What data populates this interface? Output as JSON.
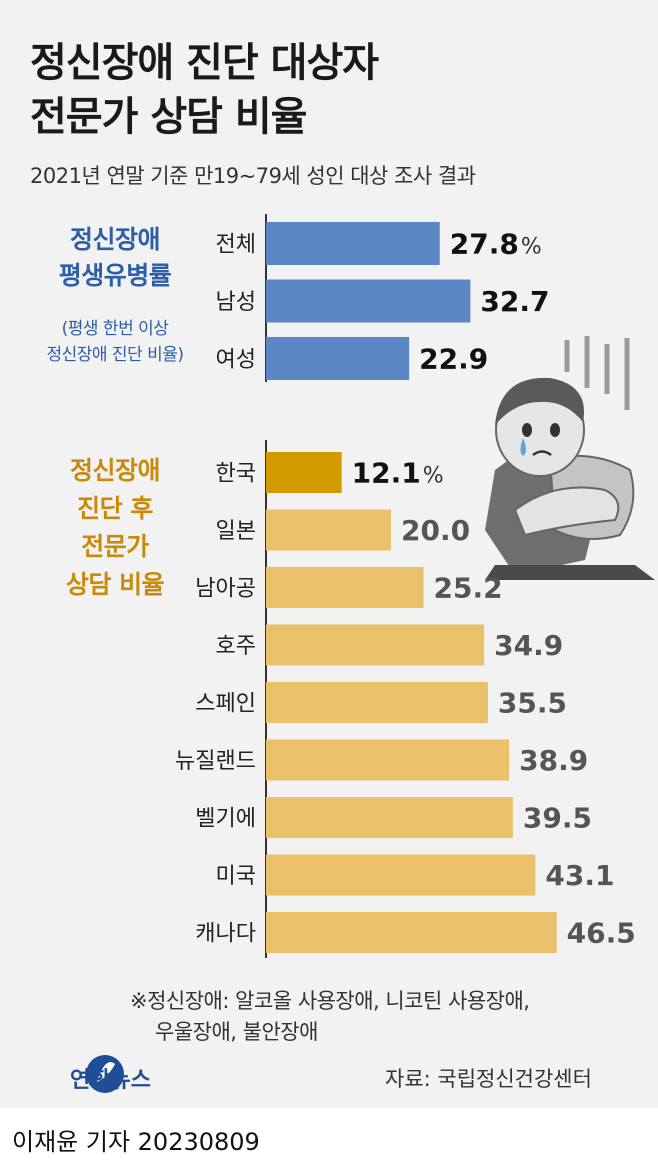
{
  "header": {
    "title_line1": "정신장애 진단 대상자",
    "title_line2": "전문가 상담 비율",
    "subtitle": "2021년 연말 기준 만19~79세 성인 대상 조사 결과"
  },
  "sections": {
    "prevalence": {
      "label_line1": "정신장애",
      "label_line2": "평생유병률",
      "note_line1": "(평생 한번 이상",
      "note_line2": "정신장애 진단 비율)"
    },
    "counseling": {
      "label_line1": "정신장애",
      "label_line2": "진단 후",
      "label_line3": "전문가",
      "label_line4": "상담 비율"
    }
  },
  "chart_data": [
    {
      "type": "bar",
      "orientation": "horizontal",
      "unit": "%",
      "categories": [
        "전체",
        "남성",
        "여성"
      ],
      "values": [
        27.8,
        32.7,
        22.9
      ],
      "value_labels": [
        "27.8",
        "32.7",
        "22.9"
      ],
      "colors": [
        "#5b87c5",
        "#5b87c5",
        "#5b87c5"
      ]
    },
    {
      "type": "bar",
      "orientation": "horizontal",
      "unit": "%",
      "categories": [
        "한국",
        "일본",
        "남아공",
        "호주",
        "스페인",
        "뉴질랜드",
        "벨기에",
        "미국",
        "캐나다"
      ],
      "values": [
        12.1,
        20.0,
        25.2,
        34.9,
        35.5,
        38.9,
        39.5,
        43.1,
        46.5
      ],
      "value_labels": [
        "12.1",
        "20.0",
        "25.2",
        "34.9",
        "35.5",
        "38.9",
        "39.5",
        "43.1",
        "46.5"
      ],
      "colors": [
        "#d39b00",
        "#ebc06a",
        "#ebc06a",
        "#ebc06a",
        "#ebc06a",
        "#ebc06a",
        "#ebc06a",
        "#ebc06a",
        "#ebc06a"
      ]
    }
  ],
  "footnote": {
    "line1": "※정신장애: 알코올 사용장애, 니코틴 사용장애,",
    "line2": "우울장애, 불안장애"
  },
  "source": "자료: 국립정신건강센터",
  "logo_text": "연합뉴스",
  "author": "이재윤 기자  20230809",
  "colors": {
    "prevalence_label": "#2e5ea8",
    "counseling_label": "#c98a0a",
    "axis": "#333333"
  }
}
